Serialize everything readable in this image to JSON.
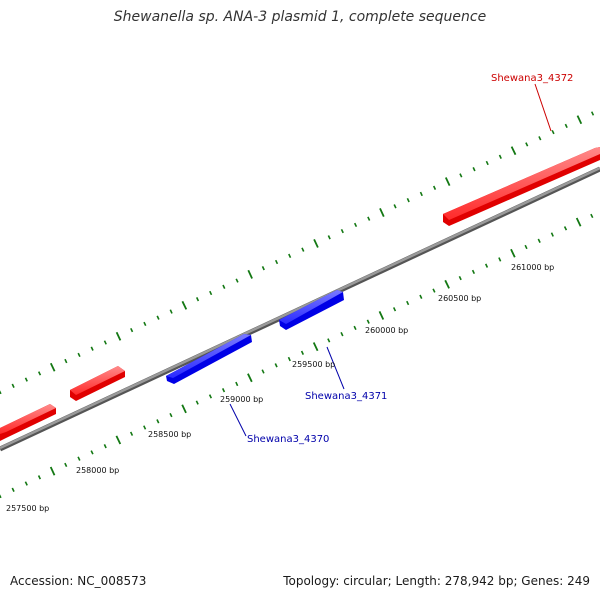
{
  "title": "Shewanella sp. ANA-3 plasmid 1, complete sequence",
  "footer": {
    "accession_label": "Accession:",
    "accession": "NC_008573",
    "topology_label": "Topology:",
    "topology": "circular",
    "length_label": "Length:",
    "length": "278,942 bp",
    "genes_label": "Genes:",
    "genes": "249"
  },
  "colors": {
    "forward_gene": "#ff0000",
    "reverse_gene": "#0000ff",
    "backbone": "#808080",
    "ticks": "#137813",
    "forward_label": "#cc0000",
    "reverse_label": "#0000aa"
  },
  "position_labels": [
    "257500 bp",
    "258000 bp",
    "258500 bp",
    "259000 bp",
    "259500 bp",
    "260000 bp",
    "260500 bp",
    "261000 bp"
  ],
  "genes": [
    {
      "name": "Shewana3_4370",
      "strand": "reverse"
    },
    {
      "name": "Shewana3_4371",
      "strand": "reverse"
    },
    {
      "name": "Shewana3_4372",
      "strand": "forward"
    }
  ]
}
